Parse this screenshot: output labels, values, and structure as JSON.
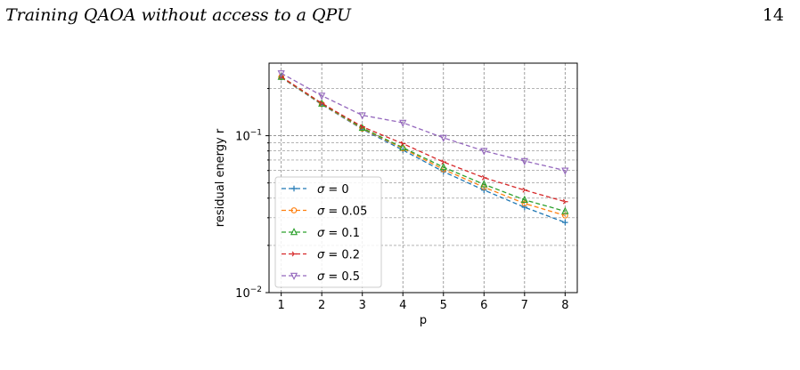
{
  "page": {
    "running_title": "Training QAOA without access to a QPU",
    "page_number": "14"
  },
  "chart_data": {
    "type": "line",
    "xlabel": "p",
    "ylabel": "residual energy r",
    "x": [
      1,
      2,
      3,
      4,
      5,
      6,
      7,
      8
    ],
    "xlim": [
      0.7,
      8.3
    ],
    "ylim": [
      0.01,
      0.29
    ],
    "yscale": "log",
    "y_tick_labels": [
      {
        "value": 0.1,
        "base": "10",
        "exp": "−1"
      },
      {
        "value": 0.01,
        "base": "10",
        "exp": "−2"
      }
    ],
    "grid": true,
    "legend_position": "lower-left",
    "series": [
      {
        "name": "σ = 0",
        "sigma": "0",
        "color": "#1f77b4",
        "marker": "plus",
        "values": [
          0.235,
          0.158,
          0.11,
          0.081,
          0.059,
          0.045,
          0.035,
          0.028
        ]
      },
      {
        "name": "σ = 0.05",
        "sigma": "0.05",
        "color": "#ff7f0e",
        "marker": "circle",
        "values": [
          0.236,
          0.159,
          0.111,
          0.083,
          0.061,
          0.047,
          0.037,
          0.031
        ]
      },
      {
        "name": "σ = 0.1",
        "sigma": "0.1",
        "color": "#2ca02c",
        "marker": "triangle-up",
        "values": [
          0.237,
          0.16,
          0.112,
          0.084,
          0.063,
          0.049,
          0.039,
          0.033
        ]
      },
      {
        "name": "σ = 0.2",
        "sigma": "0.2",
        "color": "#d62728",
        "marker": "tri-right",
        "values": [
          0.238,
          0.161,
          0.114,
          0.089,
          0.068,
          0.054,
          0.045,
          0.038
        ]
      },
      {
        "name": "σ = 0.5",
        "sigma": "0.5",
        "color": "#9467bd",
        "marker": "triangle-down",
        "values": [
          0.25,
          0.18,
          0.135,
          0.121,
          0.097,
          0.08,
          0.069,
          0.06
        ]
      }
    ]
  }
}
